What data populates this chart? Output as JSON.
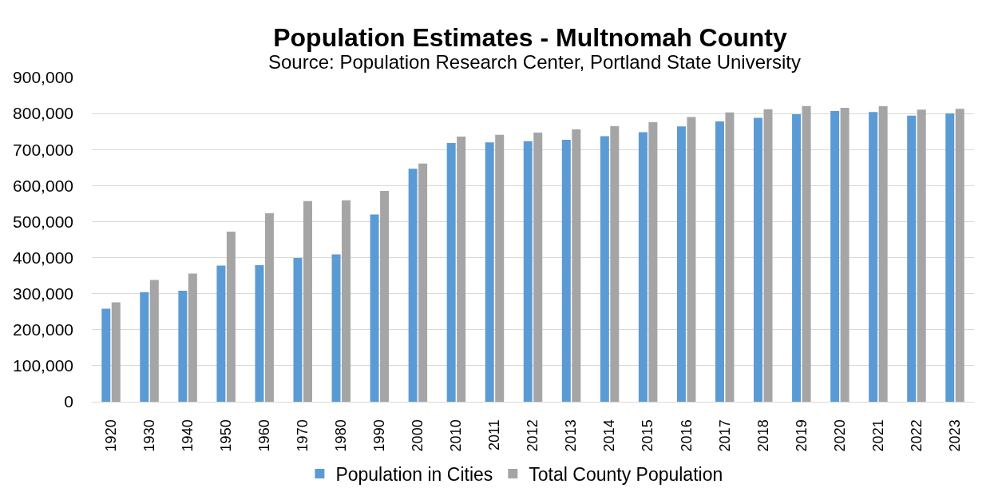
{
  "chart_data": {
    "type": "bar",
    "title": "Population Estimates - Multnomah County",
    "subtitle": "Source: Population Research Center, Portland State University",
    "categories": [
      "1920",
      "1930",
      "1940",
      "1950",
      "1960",
      "1970",
      "1980",
      "1990",
      "2000",
      "2010",
      "2011",
      "2012",
      "2013",
      "2014",
      "2015",
      "2016",
      "2017",
      "2018",
      "2019",
      "2020",
      "2021",
      "2022",
      "2023"
    ],
    "series": [
      {
        "name": "Population in Cities",
        "color": "#5b9bd5",
        "values": [
          258000,
          304000,
          308000,
          378000,
          379000,
          399000,
          409000,
          520000,
          647000,
          718000,
          720000,
          723000,
          727000,
          737000,
          748000,
          764000,
          778000,
          788000,
          798000,
          807000,
          804000,
          794000,
          800000
        ]
      },
      {
        "name": "Total County Population",
        "color": "#a5a5a5",
        "values": [
          276000,
          338000,
          356000,
          472000,
          523000,
          557000,
          559000,
          585000,
          661000,
          736000,
          741000,
          747000,
          756000,
          765000,
          776000,
          790000,
          803000,
          812000,
          821000,
          816000,
          820000,
          811000,
          813000
        ]
      }
    ],
    "ylim": [
      0,
      900000
    ],
    "yticks": [
      0,
      {
        "value": 100000,
        "label": "100,000"
      },
      {
        "value": 200000,
        "label": "200,000"
      },
      {
        "value": 300000,
        "label": "300,000"
      },
      {
        "value": 400000,
        "label": "400,000"
      },
      {
        "value": 500000,
        "label": "500,000"
      },
      {
        "value": 600000,
        "label": "600,000"
      },
      {
        "value": 700000,
        "label": "700,000"
      },
      {
        "value": 800000,
        "label": "800,000"
      },
      {
        "value": 900000,
        "label": "900,000"
      }
    ],
    "grid": "y",
    "legend": "bottom"
  }
}
